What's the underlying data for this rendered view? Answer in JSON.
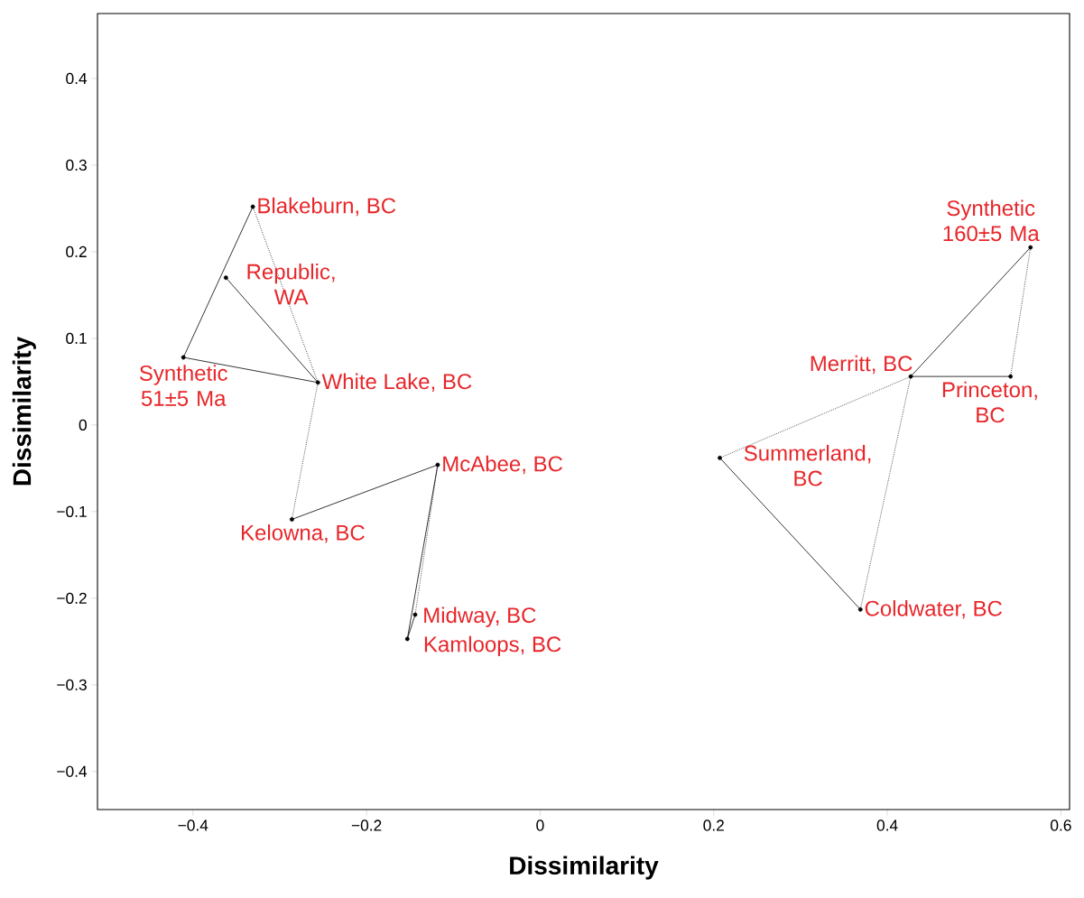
{
  "chart_data": {
    "type": "scatter",
    "xlabel": "Dissimilarity",
    "ylabel": "Dissimilarity",
    "xlim": [
      -0.51,
      0.61
    ],
    "ylim": [
      -0.444,
      0.475
    ],
    "xticks": [
      {
        "value": -0.4,
        "label": "−0.4"
      },
      {
        "value": -0.2,
        "label": "−0.2"
      },
      0,
      0.2,
      0.4,
      0.6
    ],
    "yticks": [
      {
        "value": -0.4,
        "label": "−0.4"
      },
      {
        "value": -0.3,
        "label": "−0.3"
      },
      {
        "value": -0.2,
        "label": "−0.2"
      },
      {
        "value": -0.1,
        "label": "−0.1"
      },
      0,
      0.1,
      0.2,
      0.3,
      0.4
    ],
    "grid": false,
    "series": [
      {
        "type": "line",
        "marker": "none",
        "line_style": "solid",
        "color": "#000000",
        "x": [
          -0.331,
          -0.411,
          -0.256,
          -0.362
        ],
        "values": [
          0.252,
          0.078,
          0.049,
          0.17
        ]
      },
      {
        "type": "line",
        "marker": "none",
        "line_style": "solid",
        "color": "#000000",
        "x": [
          -0.286,
          -0.118,
          -0.153,
          -0.144
        ],
        "values": [
          -0.109,
          -0.046,
          -0.247,
          -0.219
        ]
      },
      {
        "type": "line",
        "marker": "none",
        "line_style": "solid",
        "color": "#000000",
        "x": [
          0.565,
          0.427,
          0.542
        ],
        "values": [
          0.205,
          0.056,
          0.056
        ]
      },
      {
        "type": "line",
        "marker": "none",
        "line_style": "solid",
        "color": "#000000",
        "x": [
          0.207,
          0.369
        ],
        "values": [
          -0.038,
          -0.213
        ]
      },
      {
        "type": "line",
        "marker": "none",
        "line_style": "dotted",
        "color": "#000000",
        "x": [
          -0.331,
          -0.256,
          -0.286
        ],
        "values": [
          0.252,
          0.049,
          -0.109
        ]
      },
      {
        "type": "line",
        "marker": "none",
        "line_style": "dotted",
        "color": "#000000",
        "x": [
          -0.118,
          -0.144
        ],
        "values": [
          -0.046,
          -0.219
        ]
      },
      {
        "type": "line",
        "marker": "none",
        "line_style": "dotted",
        "color": "#000000",
        "x": [
          0.542,
          0.565
        ],
        "values": [
          0.056,
          0.205
        ]
      },
      {
        "type": "line",
        "marker": "none",
        "line_style": "dotted",
        "color": "#000000",
        "x": [
          0.207,
          0.427,
          0.369
        ],
        "values": [
          -0.038,
          0.056,
          -0.213
        ]
      },
      {
        "marker": "circle",
        "color": "#000000",
        "x": [
          -0.331,
          -0.362,
          -0.411,
          -0.256,
          -0.286,
          -0.118,
          -0.144,
          -0.153,
          0.207,
          0.369,
          0.427,
          0.542,
          0.565
        ],
        "values": [
          0.252,
          0.17,
          0.078,
          0.049,
          -0.109,
          -0.046,
          -0.219,
          -0.247,
          -0.038,
          -0.213,
          0.056,
          0.056,
          0.205
        ]
      }
    ],
    "annotations": [
      {
        "text": "Blakeburn, BC",
        "x": -0.331,
        "y": 0.252
      },
      {
        "text": "Republic, WA",
        "x": -0.362,
        "y": 0.17
      },
      {
        "text": "Synthetic 51±5 Ma",
        "x": -0.411,
        "y": 0.078
      },
      {
        "text": "White Lake, BC",
        "x": -0.256,
        "y": 0.049
      },
      {
        "text": "Kelowna, BC",
        "x": -0.286,
        "y": -0.109
      },
      {
        "text": "McAbee, BC",
        "x": -0.118,
        "y": -0.046
      },
      {
        "text": "Midway, BC",
        "x": -0.144,
        "y": -0.219
      },
      {
        "text": "Kamloops, BC",
        "x": -0.153,
        "y": -0.247
      },
      {
        "text": "Summerland, BC",
        "x": 0.207,
        "y": -0.038
      },
      {
        "text": "Coldwater, BC",
        "x": 0.369,
        "y": -0.213
      },
      {
        "text": "Merritt, BC",
        "x": 0.427,
        "y": 0.056
      },
      {
        "text": "Princeton, BC",
        "x": 0.542,
        "y": 0.056
      },
      {
        "text": "Synthetic 160±5 Ma",
        "x": 0.565,
        "y": 0.205
      }
    ]
  }
}
